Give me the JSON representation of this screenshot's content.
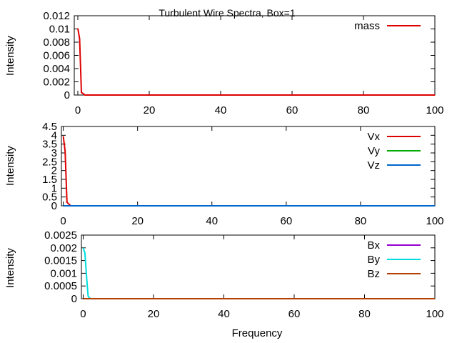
{
  "title": "Turbulent Wire Spectra, Box=1",
  "xlabel": "Frequency",
  "chart_data": [
    {
      "type": "line",
      "ylabel": "Intensity",
      "xlim": [
        -1,
        100
      ],
      "ylim": [
        0,
        0.012
      ],
      "xticks": [
        "0",
        "20",
        "40",
        "60",
        "80",
        "100"
      ],
      "xtick_values": [
        0,
        20,
        40,
        60,
        80,
        100
      ],
      "yticks": [
        "0",
        "0.002",
        "0.004",
        "0.006",
        "0.008",
        "0.01",
        "0.012"
      ],
      "ytick_values": [
        0,
        0.002,
        0.004,
        0.006,
        0.008,
        0.01,
        0.012
      ],
      "legend_position": "top-right",
      "series": [
        {
          "name": "mass",
          "color": "#dd0000",
          "x": [
            0,
            0.5,
            1,
            2,
            100
          ],
          "y": [
            0.0101,
            0.0085,
            0.0004,
            0,
            0
          ]
        }
      ]
    },
    {
      "type": "line",
      "ylabel": "Intensity",
      "xlim": [
        -0.5,
        100
      ],
      "ylim": [
        0,
        4.5
      ],
      "xticks": [
        "0",
        "20",
        "40",
        "60",
        "80",
        "100"
      ],
      "xtick_values": [
        0,
        20,
        40,
        60,
        80,
        100
      ],
      "yticks": [
        "0",
        "0.5",
        "1",
        "1.5",
        "2",
        "2.5",
        "3",
        "3.5",
        "4",
        "4.5"
      ],
      "ytick_values": [
        0,
        0.5,
        1,
        1.5,
        2,
        2.5,
        3,
        3.5,
        4,
        4.5
      ],
      "legend_position": "top-right",
      "series": [
        {
          "name": "Vx",
          "color": "#dd0000",
          "x": [
            0,
            0.5,
            1,
            2,
            100
          ],
          "y": [
            3.95,
            3.1,
            0.2,
            0,
            0
          ]
        },
        {
          "name": "Vy",
          "color": "#00aa00",
          "x": [
            0,
            100
          ],
          "y": [
            0,
            0
          ]
        },
        {
          "name": "Vz",
          "color": "#0066cc",
          "x": [
            0,
            100
          ],
          "y": [
            0,
            0
          ]
        }
      ]
    },
    {
      "type": "line",
      "ylabel": "Intensity",
      "xlim": [
        -0.5,
        100
      ],
      "ylim": [
        0,
        0.0025
      ],
      "xticks": [
        "0",
        "20",
        "40",
        "60",
        "80",
        "100"
      ],
      "xtick_values": [
        0,
        20,
        40,
        60,
        80,
        100
      ],
      "yticks": [
        "0",
        "0.0005",
        "0.001",
        "0.0015",
        "0.002",
        "0.0025"
      ],
      "ytick_values": [
        0,
        0.0005,
        0.001,
        0.0015,
        0.002,
        0.0025
      ],
      "legend_position": "top-right",
      "series": [
        {
          "name": "Bx",
          "color": "#9400d3",
          "x": [
            0,
            100
          ],
          "y": [
            0,
            0
          ]
        },
        {
          "name": "By",
          "color": "#00dddd",
          "x": [
            0,
            0.5,
            1,
            1.4,
            2,
            100
          ],
          "y": [
            0.002,
            0.0018,
            0.0008,
            0.0001,
            0,
            0
          ]
        },
        {
          "name": "Bz",
          "color": "#b34000",
          "x": [
            0,
            100
          ],
          "y": [
            0,
            0
          ]
        }
      ]
    }
  ]
}
